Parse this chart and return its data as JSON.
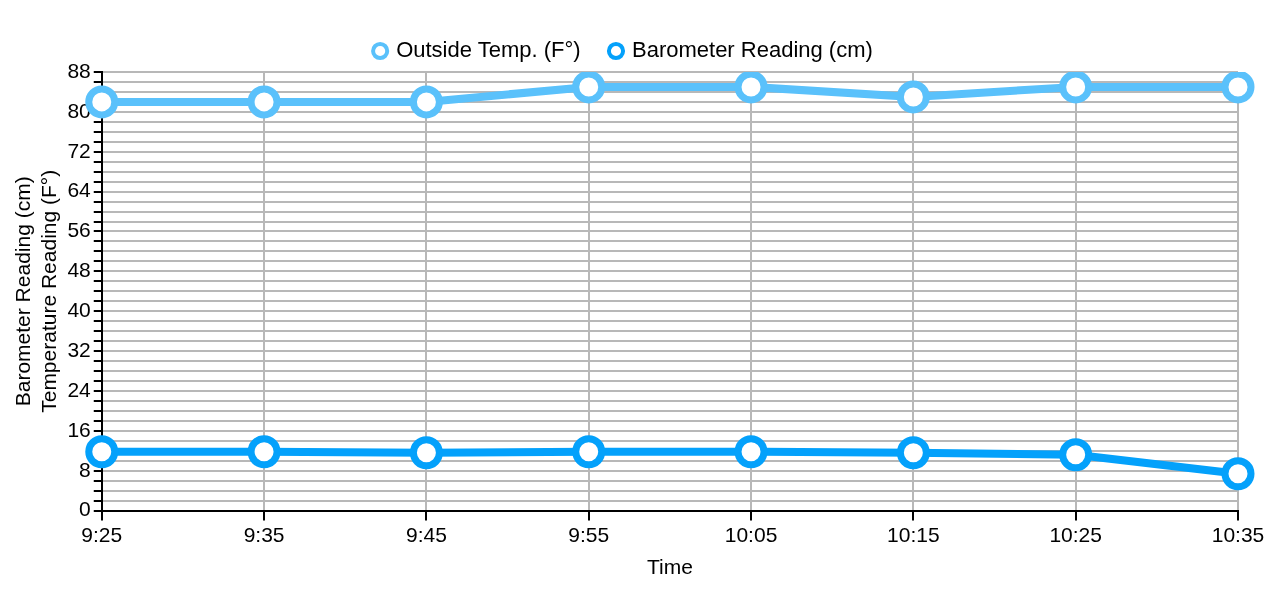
{
  "chart_data": {
    "type": "line",
    "xlabel": "Time",
    "ylabel": "Barometer Reading (cm)\nTemperature Reading (F°)",
    "categories": [
      "9:25",
      "9:35",
      "9:45",
      "9:55",
      "10:05",
      "10:15",
      "10:25",
      "10:35"
    ],
    "series": [
      {
        "name": "Outside Temp. (F°)",
        "color": "#5ac1fb",
        "values": [
          82,
          82,
          82,
          85,
          85,
          83,
          85,
          85
        ]
      },
      {
        "name": "Barometer Reading (cm)",
        "color": "#04a1fb",
        "values": [
          11.8,
          11.8,
          11.6,
          11.8,
          11.8,
          11.6,
          11.2,
          7.4
        ]
      }
    ],
    "ylim": [
      0,
      88
    ],
    "yticks": [
      0,
      {
        "value": 2,
        "label": null
      },
      {
        "value": 4,
        "label": null
      },
      {
        "value": 6,
        "label": null
      },
      8,
      {
        "value": 10,
        "label": null
      },
      {
        "value": 12,
        "label": null
      },
      {
        "value": 14,
        "label": null
      },
      16,
      {
        "value": 18,
        "label": null
      },
      {
        "value": 20,
        "label": null
      },
      {
        "value": 22,
        "label": null
      },
      24,
      {
        "value": 26,
        "label": null
      },
      {
        "value": 28,
        "label": null
      },
      {
        "value": 30,
        "label": null
      },
      32,
      {
        "value": 34,
        "label": null
      },
      {
        "value": 36,
        "label": null
      },
      {
        "value": 38,
        "label": null
      },
      40,
      {
        "value": 42,
        "label": null
      },
      {
        "value": 44,
        "label": null
      },
      {
        "value": 46,
        "label": null
      },
      48,
      {
        "value": 50,
        "label": null
      },
      {
        "value": 52,
        "label": null
      },
      {
        "value": 54,
        "label": null
      },
      56,
      {
        "value": 58,
        "label": null
      },
      {
        "value": 60,
        "label": null
      },
      {
        "value": 62,
        "label": null
      },
      64,
      {
        "value": 66,
        "label": null
      },
      {
        "value": 68,
        "label": null
      },
      {
        "value": 70,
        "label": null
      },
      72,
      {
        "value": 74,
        "label": null
      },
      {
        "value": 76,
        "label": null
      },
      {
        "value": 78,
        "label": null
      },
      80,
      {
        "value": 82,
        "label": null
      },
      {
        "value": 84,
        "label": null
      },
      {
        "value": 86,
        "label": null
      },
      88
    ],
    "grid": true,
    "legend": "top",
    "marker": "circle",
    "line_style": "solid"
  }
}
